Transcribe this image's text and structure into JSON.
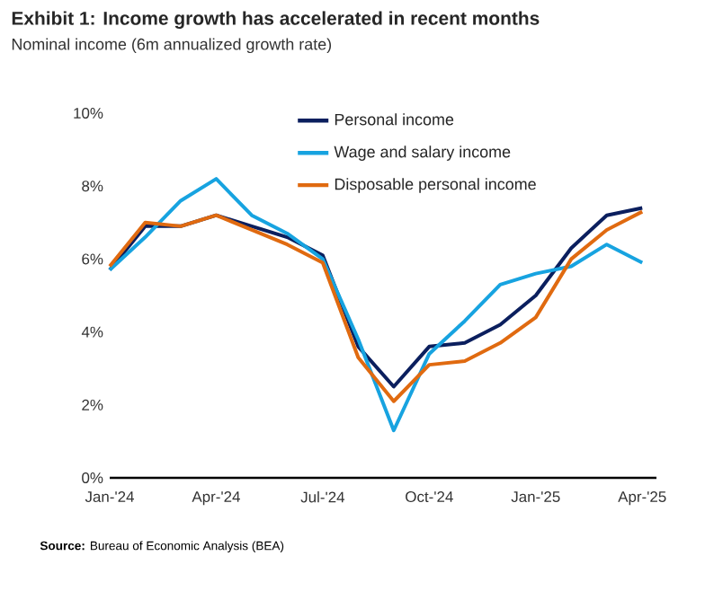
{
  "chart_data": {
    "type": "line",
    "title": "Exhibit 1: Income growth has accelerated in recent months",
    "subtitle": "Nominal income (6m annualized growth rate)",
    "annotations": [
      "**Source:** Bureau of Economic Analysis (BEA)"
    ],
    "categories": [
      "Jan-'24",
      null,
      null,
      "Apr-'24",
      null,
      null,
      "Jul-'24",
      null,
      null,
      "Oct-'24",
      null,
      null,
      "Jan-'25",
      null,
      null,
      "Apr-'25"
    ],
    "ylim": [
      0,
      10
    ],
    "yticks": [
      {
        "value": 0,
        "label": "0%"
      },
      {
        "value": 2,
        "label": "2%"
      },
      {
        "value": 4,
        "label": "4%"
      },
      {
        "value": 6,
        "label": "6%"
      },
      {
        "value": 8,
        "label": "8%"
      },
      {
        "value": 10,
        "label": "10%"
      }
    ],
    "legend": "top right",
    "series": [
      {
        "name": "Personal income",
        "color": "#0b1f5e",
        "values": [
          5.7,
          6.9,
          6.9,
          7.2,
          6.9,
          6.6,
          6.1,
          3.6,
          2.5,
          3.6,
          3.7,
          4.2,
          5.0,
          6.3,
          7.2,
          7.4
        ]
      },
      {
        "name": "Wage and salary income",
        "color": "#17a3e0",
        "values": [
          5.7,
          6.6,
          7.6,
          8.2,
          7.2,
          6.7,
          6.0,
          3.8,
          1.3,
          3.4,
          4.3,
          5.3,
          5.6,
          5.8,
          6.4,
          5.9
        ]
      },
      {
        "name": "Disposable personal income",
        "color": "#e06a10",
        "values": [
          5.8,
          7.0,
          6.9,
          7.2,
          6.8,
          6.4,
          5.9,
          3.3,
          2.1,
          3.1,
          3.2,
          3.7,
          4.4,
          6.0,
          6.8,
          7.3
        ]
      }
    ]
  }
}
